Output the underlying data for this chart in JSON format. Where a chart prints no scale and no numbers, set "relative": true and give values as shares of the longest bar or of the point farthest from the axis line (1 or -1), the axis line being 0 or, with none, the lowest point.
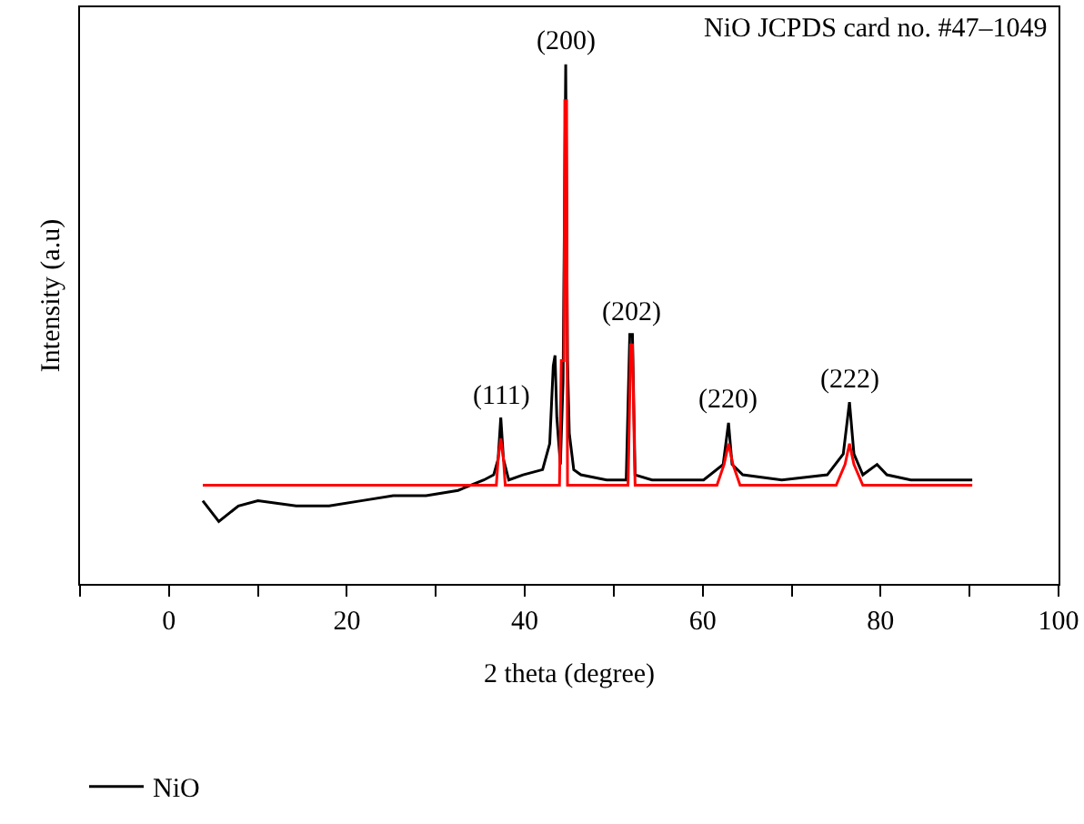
{
  "chart_data": {
    "type": "line",
    "relative": true,
    "xlabel": "2 theta (degree)",
    "ylabel": "Intensity (a.u)",
    "xlim": [
      -10,
      100
    ],
    "xticks": [
      {
        "value": -10,
        "label": null
      },
      0,
      {
        "value": 10,
        "label": null
      },
      20,
      {
        "value": 30,
        "label": null
      },
      40,
      {
        "value": 50,
        "label": null
      },
      60,
      {
        "value": 70,
        "label": null
      },
      80,
      {
        "value": 90,
        "label": null
      },
      100
    ],
    "legend": "bottom left",
    "marker": "none",
    "line_style": "solid",
    "annotations": [
      "NiO JCPDS card no. #47–1049",
      {
        "text": "(111)",
        "x": 37.3,
        "y": 0.32
      },
      {
        "text": "(200)",
        "x": 44.6,
        "y": 1.0
      },
      {
        "text": "(202)",
        "x": 52.1,
        "y": 0.48
      },
      {
        "text": "(220)",
        "x": 62.9,
        "y": 0.31
      },
      {
        "text": "(222)",
        "x": 76.5,
        "y": 0.35
      }
    ],
    "series": [
      {
        "name": "NiO",
        "color": "#000000",
        "x": [
          3.8,
          5.6,
          7.8,
          10.0,
          14.3,
          18.0,
          21.6,
          25.2,
          28.9,
          32.5,
          35.4,
          36.5,
          37.0,
          37.3,
          37.6,
          38.2,
          39.8,
          42.0,
          42.8,
          43.2,
          43.4,
          43.6,
          44.0,
          44.3,
          44.6,
          44.8,
          45.0,
          45.5,
          46.3,
          49.2,
          51.4,
          51.8,
          52.1,
          52.4,
          54.3,
          60.1,
          62.3,
          62.9,
          63.3,
          64.5,
          68.9,
          74.0,
          75.8,
          76.5,
          77.0,
          78.0,
          79.6,
          80.7,
          83.4,
          90.3
        ],
        "values": [
          0.16,
          0.12,
          0.15,
          0.16,
          0.15,
          0.15,
          0.16,
          0.17,
          0.17,
          0.18,
          0.2,
          0.21,
          0.24,
          0.32,
          0.24,
          0.2,
          0.21,
          0.22,
          0.27,
          0.42,
          0.44,
          0.32,
          0.23,
          0.39,
          1.0,
          0.43,
          0.29,
          0.22,
          0.21,
          0.2,
          0.2,
          0.48,
          0.48,
          0.21,
          0.2,
          0.2,
          0.23,
          0.31,
          0.23,
          0.21,
          0.2,
          0.21,
          0.25,
          0.35,
          0.25,
          0.21,
          0.23,
          0.21,
          0.2,
          0.2
        ]
      },
      {
        "color": "#ff0000",
        "x": [
          3.8,
          36.8,
          37.0,
          37.3,
          37.6,
          37.8,
          43.9,
          44.1,
          44.4,
          44.5,
          44.7,
          44.8,
          51.6,
          51.7,
          51.9,
          52.1,
          52.3,
          52.4,
          61.6,
          62.4,
          62.9,
          63.4,
          64.2,
          75.0,
          76.0,
          76.5,
          77.0,
          78.0,
          90.3
        ],
        "values": [
          0.19,
          0.19,
          0.24,
          0.28,
          0.24,
          0.19,
          0.19,
          0.43,
          0.43,
          0.93,
          0.93,
          0.19,
          0.19,
          0.27,
          0.46,
          0.46,
          0.27,
          0.19,
          0.19,
          0.23,
          0.27,
          0.23,
          0.19,
          0.19,
          0.23,
          0.27,
          0.23,
          0.19,
          0.19
        ]
      }
    ]
  }
}
